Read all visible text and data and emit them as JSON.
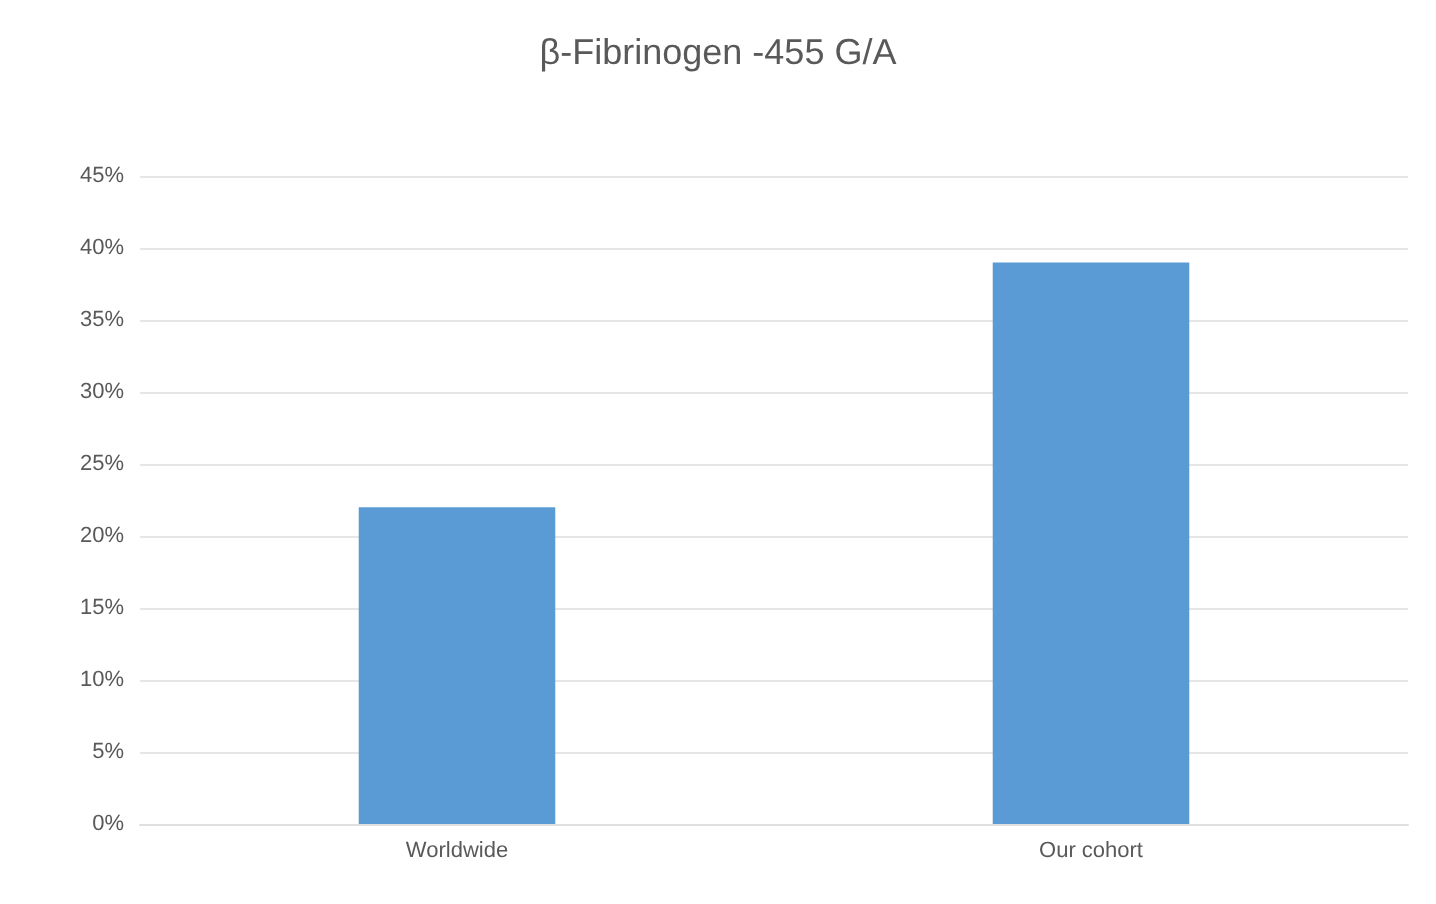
{
  "chart_data": {
    "type": "bar",
    "title": "β-Fibrinogen -455 G/A",
    "categories": [
      "Worldwide",
      "Our cohort"
    ],
    "values": [
      22,
      39
    ],
    "color": "#5b9bd5",
    "ylim": [
      0,
      45
    ],
    "yticks": [
      {
        "value": 0,
        "label": "0%"
      },
      {
        "value": 5,
        "label": "5%"
      },
      {
        "value": 10,
        "label": "10%"
      },
      {
        "value": 15,
        "label": "15%"
      },
      {
        "value": 20,
        "label": "20%"
      },
      {
        "value": 25,
        "label": "25%"
      },
      {
        "value": 30,
        "label": "30%"
      },
      {
        "value": 35,
        "label": "35%"
      },
      {
        "value": 40,
        "label": "40%"
      },
      {
        "value": 45,
        "label": "45%"
      }
    ],
    "grid": "y"
  }
}
